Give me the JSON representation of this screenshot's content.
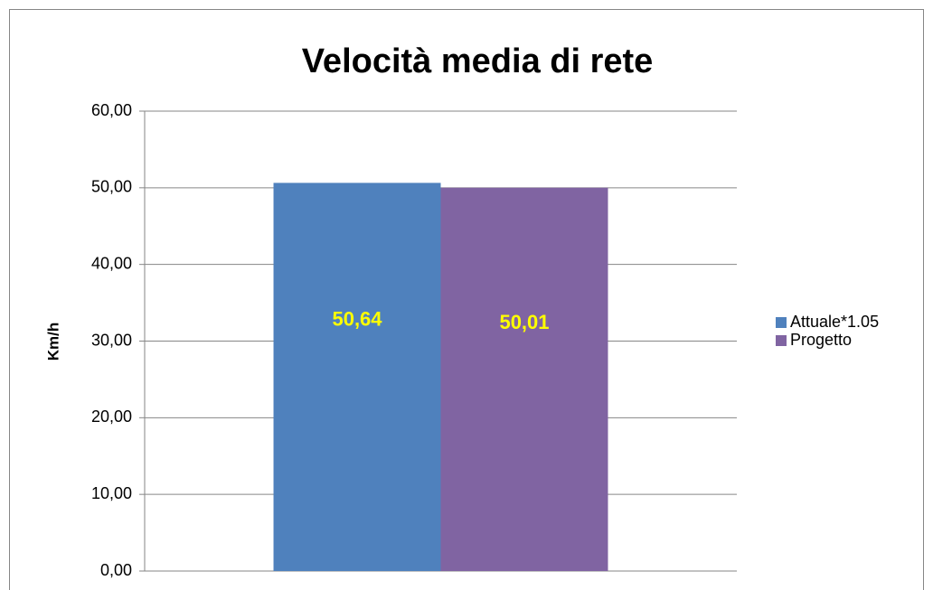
{
  "chart_data": {
    "type": "bar",
    "title": "Velocità media di rete",
    "y_label": "Km/h",
    "categories": [
      null
    ],
    "series": [
      {
        "name": "Attuale*1.05",
        "color": "#4f81bd",
        "values": [
          50.64
        ],
        "value_labels": [
          "50,64"
        ]
      },
      {
        "name": "Progetto",
        "color": "#8064a2",
        "values": [
          50.01
        ],
        "value_labels": [
          "50,01"
        ]
      }
    ],
    "ylim": [
      0,
      60
    ],
    "yticks": [
      {
        "value": 0,
        "label": "0,00"
      },
      {
        "value": 10,
        "label": "10,00"
      },
      {
        "value": 20,
        "label": "20,00"
      },
      {
        "value": 30,
        "label": "30,00"
      },
      {
        "value": 40,
        "label": "40,00"
      },
      {
        "value": 50,
        "label": "50,00"
      },
      {
        "value": 60,
        "label": "60,00"
      }
    ],
    "grid": true,
    "legend": "right",
    "value_label_color": "#ffff00"
  }
}
